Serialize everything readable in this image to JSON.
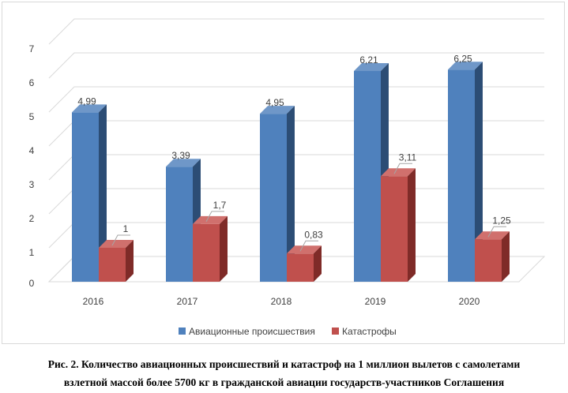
{
  "chart_data": {
    "type": "bar",
    "categories": [
      "2016",
      "2017",
      "2018",
      "2019",
      "2020"
    ],
    "series": [
      {
        "name": "Авиационные происшествия",
        "values": [
          4.99,
          3.39,
          4.95,
          6.21,
          6.25
        ],
        "labels": [
          "4,99",
          "3,39",
          "4,95",
          "6,21",
          "6,25"
        ]
      },
      {
        "name": "Катастрофы",
        "values": [
          1,
          1.7,
          0.83,
          3.11,
          1.25
        ],
        "labels": [
          "1",
          "1,7",
          "0,83",
          "3,11",
          "1,25"
        ]
      }
    ],
    "yticks": [
      "0",
      "1",
      "2",
      "3",
      "4",
      "5",
      "6",
      "7"
    ],
    "ylim": [
      0,
      7
    ],
    "grid": true,
    "legend": "bottom",
    "colors": {
      "series0_front": "#4f81bd",
      "series0_side": "#2c4d75",
      "series0_top": "#6f97c8",
      "series1_front": "#c0504d",
      "series1_side": "#7f2b28",
      "series1_top": "#d0706d",
      "grid": "#d9d9d9"
    }
  },
  "caption": {
    "line1": "Рис. 2. Количество авиационных происшествий и катастроф на 1 миллион вылетов с самолетами",
    "line2": "взлетной массой более 5700 кг в гражданской авиации государств-участников Соглашения"
  }
}
